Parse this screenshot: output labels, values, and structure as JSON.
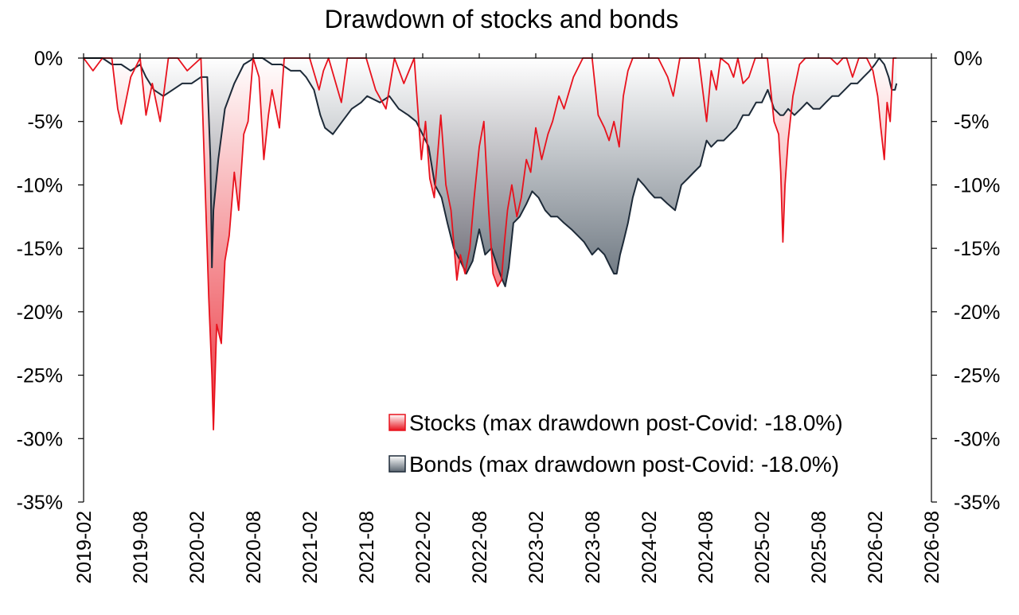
{
  "chart_data": {
    "type": "area",
    "title": "Drawdown of stocks and bonds",
    "xlabel": "",
    "ylabel": "",
    "ylim": [
      -35,
      0
    ],
    "y_ticks": [
      0,
      -5,
      -10,
      -15,
      -20,
      -25,
      -30,
      -35
    ],
    "y_tick_labels": [
      "0%",
      "-5%",
      "-10%",
      "-15%",
      "-20%",
      "-25%",
      "-30%",
      "-35%"
    ],
    "x_range": [
      "2019-02",
      "2026-08"
    ],
    "x_tick_labels": [
      "2019-02",
      "2019-08",
      "2020-02",
      "2020-08",
      "2021-02",
      "2021-08",
      "2022-02",
      "2022-08",
      "2023-02",
      "2023-08",
      "2024-02",
      "2024-08",
      "2025-02",
      "2025-08",
      "2026-02",
      "2026-08"
    ],
    "grid": false,
    "legend_position": "bottom-right",
    "series": [
      {
        "name": "Stocks (max drawdown post-Covid: -18.0%)",
        "color": "#e8121d",
        "fill_top": "#ffffff",
        "fill_bottom": "#e8121d",
        "x": [
          "2019-02-01",
          "2019-03-01",
          "2019-04-01",
          "2019-05-01",
          "2019-05-20",
          "2019-06-01",
          "2019-07-01",
          "2019-08-01",
          "2019-08-20",
          "2019-09-10",
          "2019-10-05",
          "2019-11-01",
          "2019-12-01",
          "2020-01-01",
          "2020-02-15",
          "2020-02-28",
          "2020-03-10",
          "2020-03-20",
          "2020-03-25",
          "2020-04-05",
          "2020-04-20",
          "2020-05-01",
          "2020-05-15",
          "2020-06-01",
          "2020-06-15",
          "2020-07-01",
          "2020-07-15",
          "2020-08-01",
          "2020-08-20",
          "2020-09-05",
          "2020-09-20",
          "2020-10-01",
          "2020-10-25",
          "2020-11-10",
          "2020-12-01",
          "2021-01-01",
          "2021-02-01",
          "2021-03-01",
          "2021-03-15",
          "2021-04-01",
          "2021-05-12",
          "2021-06-01",
          "2021-07-01",
          "2021-08-01",
          "2021-09-01",
          "2021-10-04",
          "2021-11-01",
          "2021-12-01",
          "2022-01-04",
          "2022-01-27",
          "2022-02-10",
          "2022-02-24",
          "2022-03-08",
          "2022-03-29",
          "2022-04-15",
          "2022-05-01",
          "2022-05-20",
          "2022-06-01",
          "2022-06-16",
          "2022-07-01",
          "2022-07-15",
          "2022-08-01",
          "2022-08-16",
          "2022-09-01",
          "2022-09-15",
          "2022-09-30",
          "2022-10-12",
          "2022-10-20",
          "2022-11-01",
          "2022-11-15",
          "2022-12-01",
          "2022-12-15",
          "2023-01-01",
          "2023-01-15",
          "2023-02-01",
          "2023-02-20",
          "2023-03-10",
          "2023-03-25",
          "2023-04-15",
          "2023-05-01",
          "2023-06-01",
          "2023-07-01",
          "2023-07-31",
          "2023-08-20",
          "2023-09-10",
          "2023-09-25",
          "2023-10-10",
          "2023-10-27",
          "2023-11-10",
          "2023-11-25",
          "2023-12-10",
          "2024-01-01",
          "2024-02-01",
          "2024-03-01",
          "2024-04-01",
          "2024-04-19",
          "2024-05-10",
          "2024-06-01",
          "2024-07-10",
          "2024-08-05",
          "2024-08-20",
          "2024-09-06",
          "2024-09-20",
          "2024-10-15",
          "2024-11-01",
          "2024-11-15",
          "2024-12-01",
          "2024-12-20",
          "2025-01-10",
          "2025-01-31",
          "2025-02-19",
          "2025-03-10",
          "2025-03-25",
          "2025-04-01",
          "2025-04-08",
          "2025-04-15",
          "2025-04-25",
          "2025-05-10",
          "2025-06-01",
          "2025-06-20",
          "2025-07-10",
          "2025-08-01",
          "2025-08-20",
          "2025-09-10",
          "2025-10-01",
          "2025-10-20",
          "2025-11-01",
          "2025-11-20",
          "2025-12-10",
          "2026-01-05",
          "2026-01-25",
          "2026-02-10",
          "2026-02-20",
          "2026-03-01",
          "2026-03-10",
          "2026-03-20",
          "2026-03-30",
          "2026-04-05",
          "2026-04-10"
        ],
        "values": [
          0.0,
          -1.0,
          0.0,
          0.0,
          -4.0,
          -5.2,
          -1.5,
          0.0,
          -4.5,
          -2.0,
          -5.0,
          0.0,
          0.0,
          -1.0,
          0.0,
          -9.8,
          -19.0,
          -25.0,
          -29.3,
          -21.0,
          -22.5,
          -16.0,
          -14.0,
          -9.0,
          -12.0,
          -6.0,
          -5.0,
          0.0,
          -1.5,
          -8.0,
          -4.5,
          -2.5,
          -5.5,
          0.0,
          0.0,
          0.0,
          0.0,
          -2.5,
          -1.0,
          0.0,
          -3.5,
          0.0,
          0.0,
          0.0,
          -2.5,
          -4.0,
          0.0,
          -2.0,
          0.0,
          -8.0,
          -5.0,
          -9.5,
          -11.0,
          -4.5,
          -10.0,
          -12.0,
          -17.5,
          -15.5,
          -17.0,
          -15.0,
          -11.0,
          -7.0,
          -5.0,
          -12.0,
          -17.0,
          -18.0,
          -17.5,
          -15.0,
          -12.0,
          -10.0,
          -12.5,
          -11.0,
          -8.0,
          -9.0,
          -5.5,
          -8.0,
          -6.0,
          -5.0,
          -3.0,
          -4.0,
          -1.5,
          0.0,
          0.0,
          -4.5,
          -5.5,
          -6.5,
          -5.0,
          -7.0,
          -3.0,
          -1.0,
          0.0,
          0.0,
          0.0,
          0.0,
          -1.5,
          -3.0,
          0.0,
          0.0,
          0.0,
          -5.0,
          -1.0,
          -2.5,
          0.0,
          -0.5,
          -1.5,
          0.0,
          -2.0,
          -1.5,
          0.0,
          0.0,
          0.0,
          -5.0,
          -6.0,
          -9.0,
          -14.5,
          -10.0,
          -6.5,
          -3.0,
          -0.5,
          0.0,
          0.0,
          0.0,
          0.0,
          0.0,
          -0.5,
          0.0,
          0.0,
          -1.5,
          0.0,
          0.0,
          -1.0,
          -3.0,
          -5.5,
          -8.0,
          -3.5,
          -5.0,
          0.0,
          0.0,
          0.0
        ]
      },
      {
        "name": "Bonds (max drawdown post-Covid: -18.0%)",
        "color": "#1d2a38",
        "fill_top": "#ffffff",
        "fill_bottom": "#5a6570",
        "x": [
          "2019-02-01",
          "2019-03-01",
          "2019-04-01",
          "2019-05-01",
          "2019-06-01",
          "2019-07-01",
          "2019-08-01",
          "2019-08-20",
          "2019-09-15",
          "2019-10-15",
          "2019-11-15",
          "2019-12-15",
          "2020-01-15",
          "2020-02-15",
          "2020-03-05",
          "2020-03-15",
          "2020-03-20",
          "2020-03-25",
          "2020-04-10",
          "2020-05-01",
          "2020-06-01",
          "2020-07-01",
          "2020-08-04",
          "2020-09-01",
          "2020-10-01",
          "2020-11-01",
          "2020-12-01",
          "2021-01-01",
          "2021-01-20",
          "2021-02-15",
          "2021-03-05",
          "2021-03-20",
          "2021-04-15",
          "2021-05-15",
          "2021-06-15",
          "2021-07-15",
          "2021-08-04",
          "2021-09-15",
          "2021-10-15",
          "2021-11-15",
          "2021-12-15",
          "2022-01-10",
          "2022-01-31",
          "2022-02-20",
          "2022-03-10",
          "2022-04-01",
          "2022-04-20",
          "2022-05-10",
          "2022-06-01",
          "2022-06-20",
          "2022-07-10",
          "2022-08-01",
          "2022-08-20",
          "2022-09-10",
          "2022-09-30",
          "2022-10-15",
          "2022-10-24",
          "2022-11-05",
          "2022-11-20",
          "2022-12-10",
          "2023-01-01",
          "2023-01-20",
          "2023-02-10",
          "2023-03-01",
          "2023-03-20",
          "2023-04-10",
          "2023-05-01",
          "2023-05-25",
          "2023-06-15",
          "2023-07-05",
          "2023-07-31",
          "2023-08-20",
          "2023-09-10",
          "2023-09-30",
          "2023-10-10",
          "2023-10-19",
          "2023-10-30",
          "2023-11-10",
          "2023-11-25",
          "2023-12-10",
          "2023-12-27",
          "2024-01-15",
          "2024-02-01",
          "2024-02-20",
          "2024-03-10",
          "2024-04-01",
          "2024-04-25",
          "2024-05-15",
          "2024-06-05",
          "2024-06-25",
          "2024-07-15",
          "2024-08-05",
          "2024-08-20",
          "2024-09-10",
          "2024-09-30",
          "2024-10-20",
          "2024-11-10",
          "2024-12-01",
          "2024-12-20",
          "2025-01-13",
          "2025-02-01",
          "2025-02-20",
          "2025-03-10",
          "2025-03-30",
          "2025-04-10",
          "2025-04-25",
          "2025-05-15",
          "2025-06-05",
          "2025-06-25",
          "2025-07-15",
          "2025-08-05",
          "2025-08-25",
          "2025-09-15",
          "2025-10-05",
          "2025-10-25",
          "2025-11-15",
          "2025-12-05",
          "2025-12-25",
          "2026-01-15",
          "2026-02-01",
          "2026-02-15",
          "2026-03-01",
          "2026-03-15",
          "2026-03-25",
          "2026-04-05",
          "2026-04-10"
        ],
        "values": [
          0.0,
          0.0,
          0.0,
          -0.5,
          -0.5,
          -1.0,
          -0.5,
          -1.5,
          -2.5,
          -3.0,
          -2.5,
          -2.0,
          -2.0,
          -1.5,
          -1.5,
          -8.0,
          -16.5,
          -12.0,
          -8.0,
          -4.0,
          -2.0,
          -0.5,
          0.0,
          0.0,
          -0.5,
          -0.5,
          -1.0,
          -1.0,
          -1.5,
          -2.5,
          -4.5,
          -5.5,
          -6.0,
          -5.0,
          -4.0,
          -3.5,
          -3.0,
          -3.5,
          -3.0,
          -4.0,
          -4.5,
          -5.0,
          -6.0,
          -7.0,
          -10.0,
          -11.0,
          -13.0,
          -15.0,
          -16.0,
          -17.0,
          -16.0,
          -13.5,
          -15.5,
          -15.0,
          -16.5,
          -17.5,
          -18.0,
          -16.5,
          -13.0,
          -12.5,
          -11.5,
          -10.5,
          -11.0,
          -12.0,
          -12.5,
          -12.5,
          -13.0,
          -13.5,
          -14.0,
          -14.5,
          -15.5,
          -15.0,
          -15.5,
          -16.5,
          -17.0,
          -17.0,
          -15.5,
          -14.5,
          -13.0,
          -11.0,
          -9.5,
          -10.0,
          -10.5,
          -11.0,
          -11.0,
          -11.5,
          -12.0,
          -10.0,
          -9.5,
          -9.0,
          -8.5,
          -6.5,
          -7.0,
          -6.5,
          -6.5,
          -6.0,
          -5.5,
          -4.5,
          -4.5,
          -3.5,
          -3.5,
          -2.5,
          -4.0,
          -4.5,
          -4.5,
          -4.0,
          -4.5,
          -4.0,
          -3.5,
          -4.0,
          -4.0,
          -3.5,
          -3.0,
          -3.0,
          -2.5,
          -2.0,
          -2.0,
          -1.5,
          -1.0,
          -0.5,
          0.0,
          -0.5,
          -1.5,
          -2.5,
          -2.5,
          -2.0
        ]
      }
    ]
  }
}
